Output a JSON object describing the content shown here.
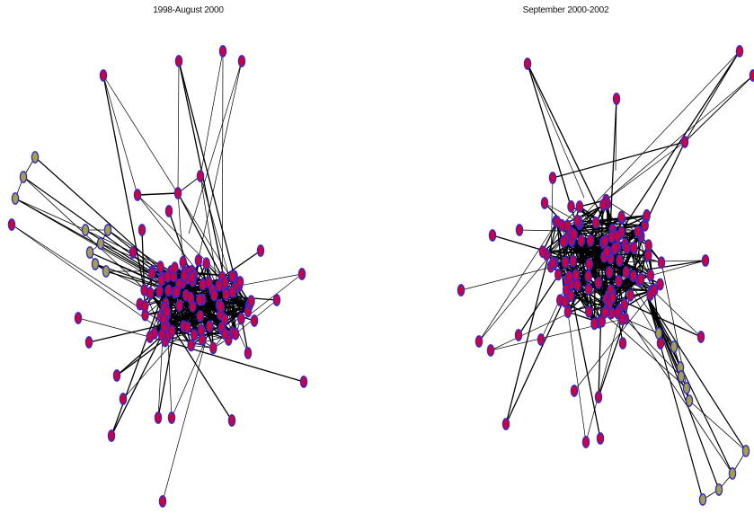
{
  "panels": [
    {
      "title": "1998-August 2000"
    },
    {
      "title": "September 2000-2002"
    }
  ],
  "colors": {
    "node_fill_main": "#d0003a",
    "node_fill_group": "#a8a040",
    "node_stroke": "#2a2ad8",
    "edge": "#000000"
  }
}
